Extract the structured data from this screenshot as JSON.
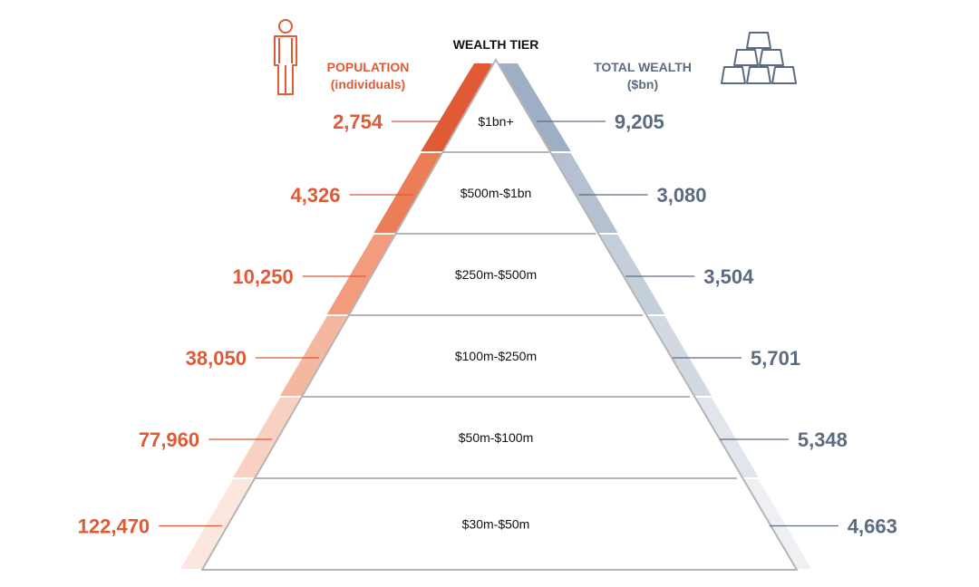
{
  "headers": {
    "population_title": "POPULATION",
    "population_subtitle": "(individuals)",
    "tier_title": "WEALTH TIER",
    "wealth_title": "TOTAL WEALTH",
    "wealth_subtitle": "($bn)"
  },
  "icons": {
    "left": "person-icon",
    "right": "gold-bars-icon"
  },
  "colors": {
    "population": "#e05a35",
    "wealth": "#5b6b80",
    "pyramid_outline": "#b5b5b5"
  },
  "chart_data": {
    "type": "table",
    "tiers": [
      {
        "label": "$1bn+",
        "population": "2,754",
        "wealth": "9,205"
      },
      {
        "label": "$500m-$1bn",
        "population": "4,326",
        "wealth": "3,080"
      },
      {
        "label": "$250m-$500m",
        "population": "10,250",
        "wealth": "3,504"
      },
      {
        "label": "$100m-$250m",
        "population": "38,050",
        "wealth": "5,701"
      },
      {
        "label": "$50m-$100m",
        "population": "77,960",
        "wealth": "5,348"
      },
      {
        "label": "$30m-$50m",
        "population": "122,470",
        "wealth": "4,663"
      }
    ]
  }
}
